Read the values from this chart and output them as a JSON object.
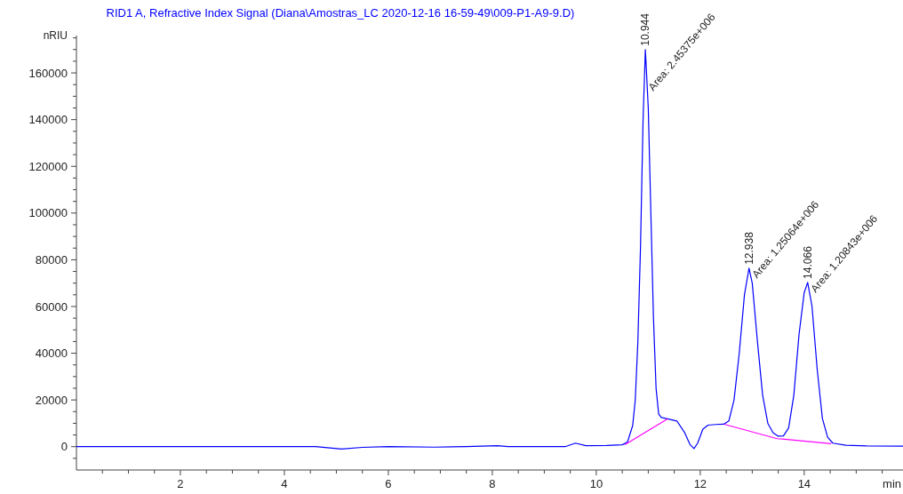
{
  "chart_data": {
    "type": "line",
    "title": "RID1 A, Refractive Index Signal (Diana\\Amostras_LC 2020-12-16 16-59-49\\009-P1-A9-9.D)",
    "xlabel": "min",
    "ylabel": "nRIU",
    "xlim": [
      0,
      15.9
    ],
    "ylim": [
      -10000,
      176000
    ],
    "xticks": [
      {
        "value": 0.5,
        "label": null
      },
      {
        "value": 1,
        "label": null
      },
      {
        "value": 1.5,
        "label": null
      },
      2,
      {
        "value": 2.5,
        "label": null
      },
      {
        "value": 3,
        "label": null
      },
      {
        "value": 3.5,
        "label": null
      },
      4,
      {
        "value": 4.5,
        "label": null
      },
      {
        "value": 5,
        "label": null
      },
      {
        "value": 5.5,
        "label": null
      },
      6,
      {
        "value": 6.5,
        "label": null
      },
      {
        "value": 7,
        "label": null
      },
      {
        "value": 7.5,
        "label": null
      },
      8,
      {
        "value": 8.5,
        "label": null
      },
      {
        "value": 9,
        "label": null
      },
      {
        "value": 9.5,
        "label": null
      },
      10,
      {
        "value": 10.5,
        "label": null
      },
      {
        "value": 11,
        "label": null
      },
      {
        "value": 11.5,
        "label": null
      },
      12,
      {
        "value": 12.5,
        "label": null
      },
      {
        "value": 13,
        "label": null
      },
      {
        "value": 13.5,
        "label": null
      },
      14,
      {
        "value": 14.5,
        "label": null
      },
      {
        "value": 15,
        "label": null
      },
      {
        "value": 15.5,
        "label": null
      }
    ],
    "yticks": [
      {
        "value": -5000,
        "label": null
      },
      0,
      {
        "value": 5000,
        "label": null
      },
      {
        "value": 10000,
        "label": null
      },
      {
        "value": 15000,
        "label": null
      },
      20000,
      {
        "value": 25000,
        "label": null
      },
      {
        "value": 30000,
        "label": null
      },
      {
        "value": 35000,
        "label": null
      },
      40000,
      {
        "value": 45000,
        "label": null
      },
      {
        "value": 50000,
        "label": null
      },
      {
        "value": 55000,
        "label": null
      },
      60000,
      {
        "value": 65000,
        "label": null
      },
      {
        "value": 70000,
        "label": null
      },
      {
        "value": 75000,
        "label": null
      },
      80000,
      {
        "value": 85000,
        "label": null
      },
      {
        "value": 90000,
        "label": null
      },
      {
        "value": 95000,
        "label": null
      },
      100000,
      {
        "value": 105000,
        "label": null
      },
      {
        "value": 110000,
        "label": null
      },
      {
        "value": 115000,
        "label": null
      },
      120000,
      {
        "value": 125000,
        "label": null
      },
      {
        "value": 130000,
        "label": null
      },
      {
        "value": 135000,
        "label": null
      },
      140000,
      {
        "value": 145000,
        "label": null
      },
      {
        "value": 150000,
        "label": null
      },
      {
        "value": 155000,
        "label": null
      },
      160000,
      {
        "value": 165000,
        "label": null
      },
      {
        "value": 170000,
        "label": null
      },
      {
        "value": 175000,
        "label": null
      }
    ],
    "grid": false,
    "marker": "none",
    "line_style": "solid",
    "series": [
      {
        "color": "#0000ff",
        "x": [
          0,
          4.6,
          5.1,
          5.5,
          6,
          6.9,
          7.5,
          8.1,
          8.3,
          9.4,
          9.6,
          9.8,
          10.2,
          10.5,
          10.6,
          10.7,
          10.75,
          10.8,
          10.85,
          10.9,
          10.944,
          11.0,
          11.05,
          11.1,
          11.15,
          11.2,
          11.25,
          11.37,
          11.55,
          11.7,
          11.8,
          11.88,
          11.95,
          12.05,
          12.15,
          12.3,
          12.45,
          12.55,
          12.65,
          12.75,
          12.85,
          12.938,
          13.0,
          13.1,
          13.2,
          13.3,
          13.4,
          13.5,
          13.6,
          13.7,
          13.8,
          13.9,
          14.0,
          14.066,
          14.15,
          14.25,
          14.35,
          14.45,
          14.55,
          14.8,
          15.2,
          15.9
        ],
        "values": [
          0,
          0,
          -1000,
          -300,
          0,
          -200,
          0,
          400,
          0,
          0,
          1500,
          400,
          500,
          800,
          2000,
          9000,
          20000,
          45000,
          85000,
          140000,
          170000,
          145000,
          100000,
          55000,
          25000,
          14000,
          12500,
          11900,
          11000,
          6000,
          1000,
          -800,
          1500,
          7500,
          9200,
          9500,
          9600,
          11000,
          20000,
          40000,
          65000,
          76400,
          70000,
          45000,
          22000,
          10000,
          6000,
          4500,
          4600,
          8000,
          22000,
          48000,
          66000,
          70300,
          60000,
          33000,
          12000,
          4000,
          1500,
          600,
          300,
          200
        ]
      },
      {
        "color": "#ff00ff",
        "x": [
          10.55,
          11.37
        ],
        "values": [
          800,
          11900
        ]
      },
      {
        "color": "#ff00ff",
        "x": [
          12.46,
          13.48,
          13.58,
          14.52
        ],
        "values": [
          9600,
          3400,
          3300,
          1300
        ]
      }
    ],
    "annotations": [
      {
        "text": "10.944",
        "x": 10.944,
        "y": 170000
      },
      {
        "text": "Area: 2.45375e+006",
        "x": 10.944,
        "y": 170000
      },
      {
        "text": "12.938",
        "x": 12.938,
        "y": 76400
      },
      {
        "text": "Area: 1.25064e+006",
        "x": 12.938,
        "y": 76400
      },
      {
        "text": "14.066",
        "x": 14.066,
        "y": 70300
      },
      {
        "text": "Area: 1.20843e+006",
        "x": 14.066,
        "y": 70300
      }
    ]
  }
}
